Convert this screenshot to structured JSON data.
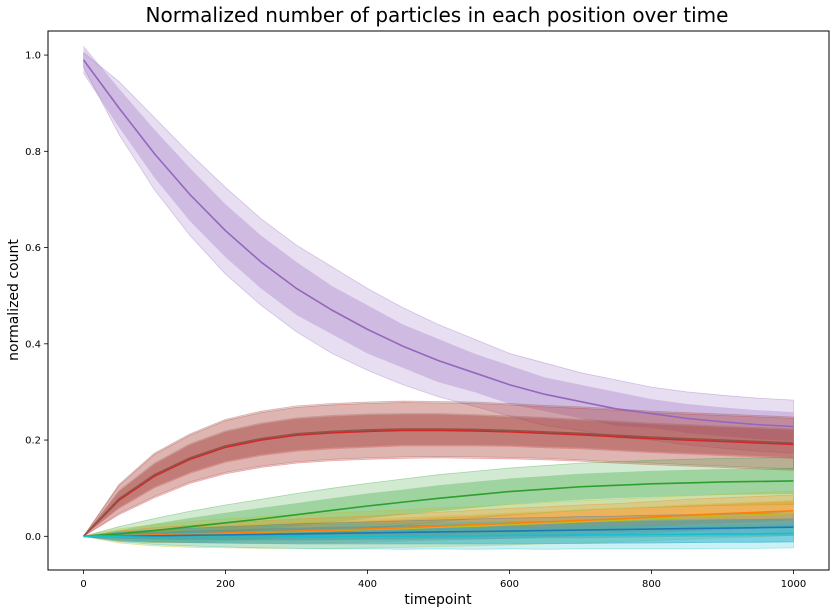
{
  "chart_data": {
    "type": "line",
    "title": "Normalized number of particles in each position over time",
    "xlabel": "timepoint",
    "ylabel": "normalized count",
    "xlim": [
      -50,
      1050
    ],
    "ylim": [
      -0.07,
      1.05
    ],
    "xticks": [
      "0",
      "200",
      "400",
      "600",
      "800",
      "1000"
    ],
    "xtick_values": [
      0,
      200,
      400,
      600,
      800,
      1000
    ],
    "yticks": [
      "0.0",
      "0.2",
      "0.4",
      "0.6",
      "0.8",
      "1.0"
    ],
    "ytick_values": [
      0.0,
      0.2,
      0.4,
      0.6,
      0.8,
      1.0
    ],
    "grid": false,
    "legend": "none",
    "x": [
      0,
      50,
      100,
      150,
      200,
      250,
      300,
      350,
      400,
      450,
      500,
      550,
      600,
      650,
      700,
      750,
      800,
      850,
      900,
      950,
      1000
    ],
    "series": [
      {
        "color": "#9467bd",
        "values": [
          0.99,
          0.89,
          0.795,
          0.71,
          0.635,
          0.57,
          0.515,
          0.47,
          0.43,
          0.395,
          0.365,
          0.34,
          0.315,
          0.295,
          0.28,
          0.265,
          0.255,
          0.245,
          0.238,
          0.232,
          0.228
        ],
        "band_inner": [
          0.03,
          0.04,
          0.05,
          0.055,
          0.055,
          0.055,
          0.055,
          0.05,
          0.05,
          0.045,
          0.045,
          0.04,
          0.04,
          0.035,
          0.035,
          0.035,
          0.03,
          0.03,
          0.03,
          0.03,
          0.03
        ],
        "band_outer": [
          0.015,
          0.055,
          0.075,
          0.085,
          0.09,
          0.09,
          0.09,
          0.09,
          0.085,
          0.08,
          0.075,
          0.07,
          0.065,
          0.065,
          0.06,
          0.06,
          0.055,
          0.055,
          0.055,
          0.055,
          0.055
        ]
      },
      {
        "color": "#d62728",
        "values": [
          0.0,
          0.075,
          0.125,
          0.16,
          0.185,
          0.2,
          0.21,
          0.215,
          0.218,
          0.22,
          0.22,
          0.219,
          0.217,
          0.214,
          0.211,
          0.207,
          0.203,
          0.2,
          0.197,
          0.194,
          0.191
        ],
        "band_inner": [
          0.0,
          0.018,
          0.025,
          0.03,
          0.032,
          0.033,
          0.034,
          0.034,
          0.034,
          0.033,
          0.033,
          0.032,
          0.031,
          0.031,
          0.03,
          0.03,
          0.03,
          0.03,
          0.03,
          0.03,
          0.03
        ],
        "band_outer": [
          0.0,
          0.03,
          0.045,
          0.05,
          0.055,
          0.057,
          0.058,
          0.058,
          0.058,
          0.058,
          0.057,
          0.057,
          0.056,
          0.055,
          0.055,
          0.055,
          0.054,
          0.054,
          0.054,
          0.054,
          0.054
        ]
      },
      {
        "color": "#8c564b",
        "values": [
          0.0,
          0.078,
          0.128,
          0.163,
          0.188,
          0.203,
          0.213,
          0.218,
          0.221,
          0.223,
          0.223,
          0.222,
          0.22,
          0.217,
          0.214,
          0.21,
          0.206,
          0.203,
          0.2,
          0.197,
          0.194
        ],
        "band_inner": [
          0.0,
          0.018,
          0.025,
          0.03,
          0.032,
          0.033,
          0.034,
          0.034,
          0.034,
          0.033,
          0.033,
          0.032,
          0.031,
          0.031,
          0.03,
          0.03,
          0.03,
          0.03,
          0.03,
          0.03,
          0.03
        ],
        "band_outer": [
          0.0,
          0.03,
          0.045,
          0.05,
          0.055,
          0.057,
          0.058,
          0.058,
          0.058,
          0.058,
          0.057,
          0.057,
          0.056,
          0.055,
          0.055,
          0.055,
          0.054,
          0.054,
          0.054,
          0.054,
          0.054
        ]
      },
      {
        "color": "#2ca02c",
        "values": [
          0.0,
          0.005,
          0.012,
          0.02,
          0.028,
          0.036,
          0.045,
          0.054,
          0.063,
          0.071,
          0.079,
          0.086,
          0.093,
          0.098,
          0.103,
          0.106,
          0.109,
          0.111,
          0.113,
          0.114,
          0.115
        ],
        "band_inner": [
          0.0,
          0.008,
          0.014,
          0.018,
          0.021,
          0.023,
          0.024,
          0.025,
          0.026,
          0.026,
          0.027,
          0.027,
          0.027,
          0.027,
          0.027,
          0.027,
          0.027,
          0.027,
          0.027,
          0.027,
          0.027
        ],
        "band_outer": [
          0.0,
          0.015,
          0.025,
          0.032,
          0.037,
          0.041,
          0.044,
          0.046,
          0.047,
          0.048,
          0.049,
          0.049,
          0.049,
          0.049,
          0.049,
          0.049,
          0.049,
          0.049,
          0.049,
          0.049,
          0.049
        ]
      },
      {
        "color": "#bcbd22",
        "values": [
          0.0,
          0.001,
          0.002,
          0.004,
          0.006,
          0.008,
          0.01,
          0.012,
          0.014,
          0.016,
          0.019,
          0.021,
          0.024,
          0.027,
          0.03,
          0.033,
          0.036,
          0.039,
          0.042,
          0.045,
          0.048
        ],
        "band_inner": [
          0.0,
          0.008,
          0.012,
          0.015,
          0.017,
          0.019,
          0.02,
          0.021,
          0.022,
          0.023,
          0.024,
          0.024,
          0.025,
          0.025,
          0.026,
          0.026,
          0.026,
          0.027,
          0.027,
          0.027,
          0.027
        ],
        "band_outer": [
          0.0,
          0.015,
          0.022,
          0.027,
          0.03,
          0.033,
          0.035,
          0.037,
          0.038,
          0.039,
          0.04,
          0.041,
          0.042,
          0.043,
          0.044,
          0.044,
          0.045,
          0.045,
          0.045,
          0.046,
          0.046
        ]
      },
      {
        "color": "#ff7f0e",
        "values": [
          0.0,
          0.001,
          0.003,
          0.005,
          0.007,
          0.009,
          0.011,
          0.013,
          0.015,
          0.018,
          0.021,
          0.024,
          0.027,
          0.03,
          0.033,
          0.036,
          0.04,
          0.044,
          0.047,
          0.05,
          0.053
        ],
        "band_inner": [
          0.0,
          0.006,
          0.009,
          0.011,
          0.013,
          0.014,
          0.015,
          0.016,
          0.017,
          0.017,
          0.018,
          0.018,
          0.019,
          0.019,
          0.02,
          0.02,
          0.02,
          0.02,
          0.02,
          0.02,
          0.02
        ],
        "band_outer": [
          0.0,
          0.01,
          0.015,
          0.018,
          0.021,
          0.023,
          0.025,
          0.026,
          0.027,
          0.028,
          0.029,
          0.03,
          0.031,
          0.031,
          0.032,
          0.032,
          0.032,
          0.033,
          0.033,
          0.033,
          0.033
        ]
      },
      {
        "color": "#1f77b4",
        "values": [
          0.0,
          0.0,
          0.001,
          0.002,
          0.003,
          0.004,
          0.005,
          0.006,
          0.007,
          0.008,
          0.009,
          0.01,
          0.011,
          0.012,
          0.013,
          0.014,
          0.015,
          0.016,
          0.017,
          0.018,
          0.019
        ],
        "band_inner": [
          0.0,
          0.005,
          0.008,
          0.01,
          0.011,
          0.012,
          0.013,
          0.014,
          0.014,
          0.015,
          0.015,
          0.016,
          0.016,
          0.016,
          0.017,
          0.017,
          0.017,
          0.017,
          0.018,
          0.018,
          0.018
        ],
        "band_outer": [
          0.0,
          0.008,
          0.012,
          0.015,
          0.017,
          0.019,
          0.021,
          0.022,
          0.023,
          0.024,
          0.025,
          0.026,
          0.027,
          0.027,
          0.028,
          0.028,
          0.029,
          0.029,
          0.029,
          0.03,
          0.03
        ]
      },
      {
        "color": "#17becf",
        "values": [
          0.0,
          -0.001,
          -0.002,
          -0.002,
          -0.002,
          -0.002,
          -0.001,
          -0.001,
          0.0,
          0.0,
          0.001,
          0.001,
          0.002,
          0.002,
          0.003,
          0.003,
          0.004,
          0.004,
          0.005,
          0.005,
          0.006
        ],
        "band_inner": [
          0.0,
          0.006,
          0.009,
          0.011,
          0.012,
          0.013,
          0.014,
          0.015,
          0.015,
          0.016,
          0.016,
          0.017,
          0.017,
          0.017,
          0.018,
          0.018,
          0.018,
          0.018,
          0.019,
          0.019,
          0.019
        ],
        "band_outer": [
          0.0,
          0.01,
          0.015,
          0.018,
          0.02,
          0.022,
          0.024,
          0.025,
          0.026,
          0.027,
          0.027,
          0.028,
          0.028,
          0.029,
          0.029,
          0.029,
          0.03,
          0.03,
          0.03,
          0.03,
          0.03
        ]
      }
    ]
  }
}
